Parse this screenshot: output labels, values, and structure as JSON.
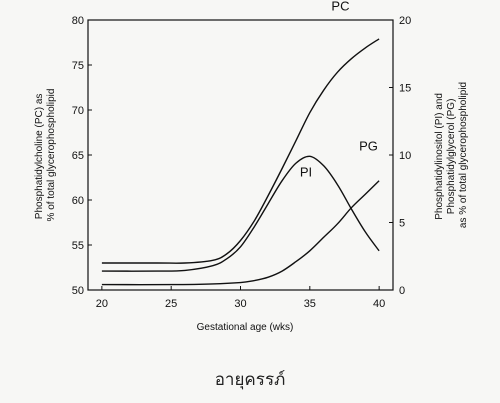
{
  "chart_data": {
    "type": "line",
    "xlabel": "Gestational age (wks)",
    "ylabel_left": [
      "Phosphatidylcholine (PC) as",
      "% of total glycerophospholipid"
    ],
    "ylabel_right": [
      "Phosphatidylinositol (PI) and",
      "Phosphatidylglycerol (PG)",
      "as % of total glycerophospholipid"
    ],
    "x_ticks": [
      20,
      25,
      30,
      35,
      40
    ],
    "y_left_ticks": [
      50,
      55,
      60,
      65,
      70,
      75,
      80
    ],
    "y_right_ticks": [
      0,
      5,
      10,
      15,
      20
    ],
    "xlim": [
      19,
      41
    ],
    "ylim_left": [
      50,
      80
    ],
    "ylim_right": [
      0,
      20
    ],
    "grid": false,
    "series": [
      {
        "name": "PC",
        "axis": "left",
        "x": [
          20,
          24,
          26,
          28,
          29,
          30,
          31,
          32,
          33,
          34,
          35,
          36,
          37,
          38,
          39,
          40
        ],
        "y": [
          53.0,
          53.0,
          53.0,
          53.3,
          54.0,
          55.5,
          57.7,
          60.5,
          63.5,
          66.6,
          69.7,
          72.2,
          74.2,
          75.7,
          76.9,
          77.9
        ]
      },
      {
        "name": "PI",
        "axis": "right",
        "x": [
          20,
          24,
          26,
          28,
          29,
          30,
          31,
          32,
          33,
          34,
          35,
          36,
          37,
          38,
          39,
          40
        ],
        "y": [
          1.4,
          1.4,
          1.45,
          1.8,
          2.3,
          3.2,
          4.7,
          6.4,
          8.1,
          9.4,
          9.9,
          9.2,
          7.8,
          6.0,
          4.3,
          2.9
        ]
      },
      {
        "name": "PG",
        "axis": "right",
        "x": [
          20,
          25,
          28,
          30,
          31,
          32,
          33,
          34,
          35,
          36,
          37,
          38,
          39,
          40
        ],
        "y": [
          0.4,
          0.4,
          0.45,
          0.55,
          0.7,
          0.95,
          1.4,
          2.1,
          2.9,
          3.9,
          4.9,
          6.1,
          7.1,
          8.1
        ]
      }
    ]
  },
  "caption": "อายุครรภ์"
}
